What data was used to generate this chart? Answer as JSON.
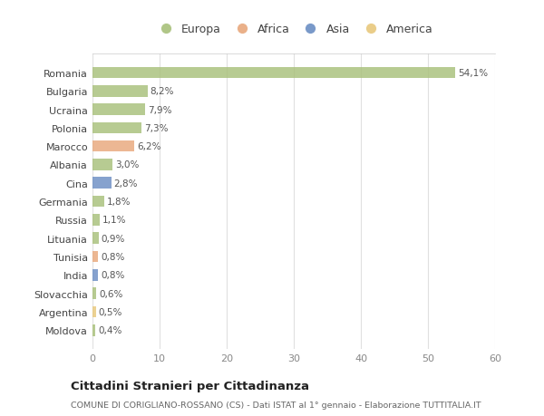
{
  "categories": [
    "Romania",
    "Bulgaria",
    "Ucraina",
    "Polonia",
    "Marocco",
    "Albania",
    "Cina",
    "Germania",
    "Russia",
    "Lituania",
    "Tunisia",
    "India",
    "Slovacchia",
    "Argentina",
    "Moldova"
  ],
  "values": [
    54.1,
    8.2,
    7.9,
    7.3,
    6.2,
    3.0,
    2.8,
    1.8,
    1.1,
    0.9,
    0.8,
    0.8,
    0.6,
    0.5,
    0.4
  ],
  "labels": [
    "54,1%",
    "8,2%",
    "7,9%",
    "7,3%",
    "6,2%",
    "3,0%",
    "2,8%",
    "1,8%",
    "1,1%",
    "0,9%",
    "0,8%",
    "0,8%",
    "0,6%",
    "0,5%",
    "0,4%"
  ],
  "continents": [
    "Europa",
    "Europa",
    "Europa",
    "Europa",
    "Africa",
    "Europa",
    "Asia",
    "Europa",
    "Europa",
    "Europa",
    "Africa",
    "Asia",
    "Europa",
    "America",
    "Europa"
  ],
  "colors": {
    "Europa": "#a8c07a",
    "Africa": "#e8a87c",
    "Asia": "#6b8ec4",
    "America": "#e8c87c"
  },
  "xlim": [
    0,
    60
  ],
  "xticks": [
    0,
    10,
    20,
    30,
    40,
    50,
    60
  ],
  "title": "Cittadini Stranieri per Cittadinanza",
  "subtitle": "COMUNE DI CORIGLIANO-ROSSANO (CS) - Dati ISTAT al 1° gennaio - Elaborazione TUTTITALIA.IT",
  "background_color": "#ffffff",
  "grid_color": "#e0e0e0",
  "bar_height": 0.62,
  "legend_order": [
    "Europa",
    "Africa",
    "Asia",
    "America"
  ]
}
